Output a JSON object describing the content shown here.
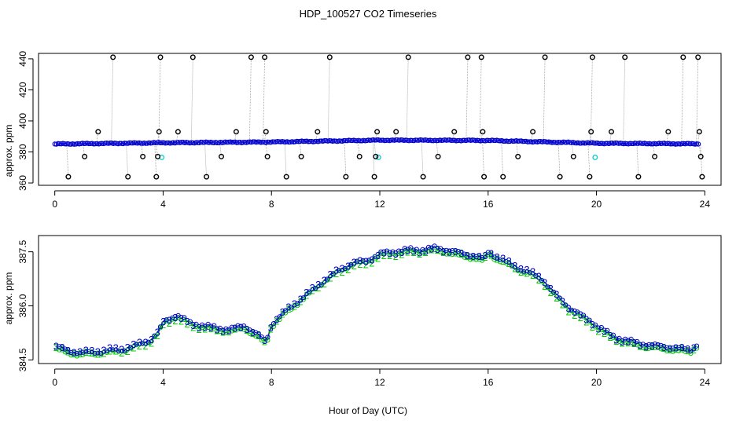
{
  "title": "HDP_100527  CO2 Timeseries",
  "xlabel": "Hour of Day (UTC)",
  "colors": {
    "blue": "#0000cc",
    "green": "#00cc00",
    "cyan": "#00cccc",
    "black": "#000000",
    "gray": "#9a9a9a"
  },
  "chart_data": [
    {
      "type": "scatter",
      "name": "top",
      "title": "HDP_100527  CO2 Timeseries",
      "xlabel": "",
      "ylabel": "approx. ppm",
      "xlim": [
        -0.6,
        24.6
      ],
      "ylim": [
        358.5,
        443.5
      ],
      "xticks": [
        0,
        4,
        8,
        12,
        16,
        20,
        24
      ],
      "yticks": [
        360,
        380,
        400,
        420,
        440
      ],
      "main_series": {
        "name": "CO2 (blue circles)",
        "x": [
          0,
          4,
          8,
          12,
          16,
          20,
          23.8
        ],
        "y": [
          385.1,
          385.9,
          386.4,
          387.6,
          387.4,
          385.6,
          385.2
        ]
      },
      "cyan_points": {
        "x": [
          3.95,
          11.95,
          19.95
        ],
        "y": [
          376.5,
          376.5,
          376.5
        ]
      },
      "outliers": {
        "x": [
          0.5,
          1.1,
          1.6,
          2.15,
          2.7,
          3.25,
          3.75,
          3.8,
          3.85,
          3.9,
          4.55,
          5.1,
          5.6,
          6.15,
          6.7,
          7.25,
          7.75,
          7.8,
          7.85,
          8.55,
          9.1,
          9.7,
          10.15,
          10.75,
          11.25,
          11.8,
          11.85,
          11.9,
          12.6,
          13.05,
          13.6,
          14.15,
          14.75,
          15.25,
          15.75,
          15.8,
          15.85,
          16.55,
          17.1,
          17.65,
          18.1,
          18.65,
          19.15,
          19.75,
          19.8,
          19.85,
          20.55,
          21.05,
          21.55,
          22.15,
          22.65,
          23.2,
          23.75,
          23.8,
          23.85,
          23.9
        ],
        "y": [
          364,
          377,
          393,
          441,
          364,
          377,
          364,
          377,
          393,
          441,
          393,
          441,
          364,
          377,
          393,
          441,
          441,
          393,
          377,
          364,
          377,
          393,
          441,
          364,
          377,
          364,
          377,
          393,
          393,
          441,
          364,
          377,
          393,
          441,
          441,
          393,
          364,
          364,
          377,
          393,
          441,
          364,
          377,
          364,
          393,
          441,
          393,
          441,
          364,
          377,
          393,
          441,
          441,
          393,
          377,
          364
        ]
      }
    },
    {
      "type": "line",
      "name": "bottom",
      "xlabel": "Hour of Day (UTC)",
      "ylabel": "approx. ppm",
      "xlim": [
        -0.6,
        24.6
      ],
      "ylim": [
        384.4,
        387.95
      ],
      "xticks": [
        0,
        4,
        8,
        12,
        16,
        20,
        24
      ],
      "yticks": [
        384.5,
        386.0,
        387.5
      ],
      "ytick_labels": [
        "384.5",
        "386.0",
        "387.5"
      ],
      "markers": {
        "blue_series": "3",
        "green_series": "2"
      },
      "series": [
        {
          "name": "3",
          "x": [
            0,
            0.5,
            1,
            1.5,
            2,
            2.5,
            3,
            3.5,
            3.85,
            4.0,
            4.5,
            5,
            5.5,
            6,
            6.5,
            7,
            7.5,
            7.8,
            8.0,
            8.5,
            9,
            9.5,
            10,
            10.5,
            11,
            11.5,
            12,
            12.5,
            13,
            13.5,
            14,
            14.5,
            15,
            15.5,
            15.85,
            16.0,
            16.5,
            17,
            17.5,
            18,
            18.5,
            19,
            19.5,
            19.85,
            20.0,
            20.5,
            21,
            21.5,
            22,
            22.5,
            23,
            23.5,
            23.8
          ],
          "y": [
            384.9,
            384.75,
            384.72,
            384.73,
            384.78,
            384.8,
            384.92,
            385.05,
            385.3,
            385.55,
            385.75,
            385.52,
            385.45,
            385.38,
            385.35,
            385.45,
            385.2,
            385.0,
            385.5,
            385.85,
            386.15,
            386.45,
            386.75,
            387.0,
            387.2,
            387.25,
            387.45,
            387.5,
            387.55,
            387.55,
            387.6,
            387.55,
            387.45,
            387.4,
            387.3,
            387.5,
            387.3,
            387.1,
            386.95,
            386.75,
            386.3,
            385.95,
            385.7,
            385.55,
            385.45,
            385.2,
            385.05,
            384.98,
            384.9,
            384.88,
            384.82,
            384.8,
            385.0
          ]
        },
        {
          "name": "2",
          "x": [
            0,
            0.5,
            1,
            1.5,
            2,
            2.5,
            3,
            3.5,
            3.85,
            4.0,
            4.5,
            5,
            5.5,
            6,
            6.5,
            7,
            7.5,
            7.8,
            8.0,
            8.5,
            9,
            9.5,
            10,
            10.5,
            11,
            11.5,
            12,
            12.5,
            13,
            13.5,
            14,
            14.5,
            15,
            15.5,
            15.85,
            16.0,
            16.5,
            17,
            17.5,
            18,
            18.5,
            19,
            19.5,
            19.85,
            20.0,
            20.5,
            21,
            21.5,
            22,
            22.5,
            23,
            23.5,
            23.8
          ],
          "y": [
            384.84,
            384.69,
            384.66,
            384.67,
            384.72,
            384.74,
            384.86,
            384.99,
            385.24,
            385.49,
            385.69,
            385.46,
            385.39,
            385.32,
            385.29,
            385.39,
            385.14,
            384.94,
            385.44,
            385.79,
            386.09,
            386.39,
            386.69,
            386.94,
            387.14,
            387.19,
            387.39,
            387.44,
            387.49,
            387.49,
            387.54,
            387.49,
            387.39,
            387.34,
            387.24,
            387.44,
            387.24,
            387.04,
            386.89,
            386.69,
            386.24,
            385.89,
            385.64,
            385.49,
            385.39,
            385.14,
            384.99,
            384.92,
            384.84,
            384.82,
            384.76,
            384.74,
            384.94
          ]
        }
      ]
    }
  ]
}
